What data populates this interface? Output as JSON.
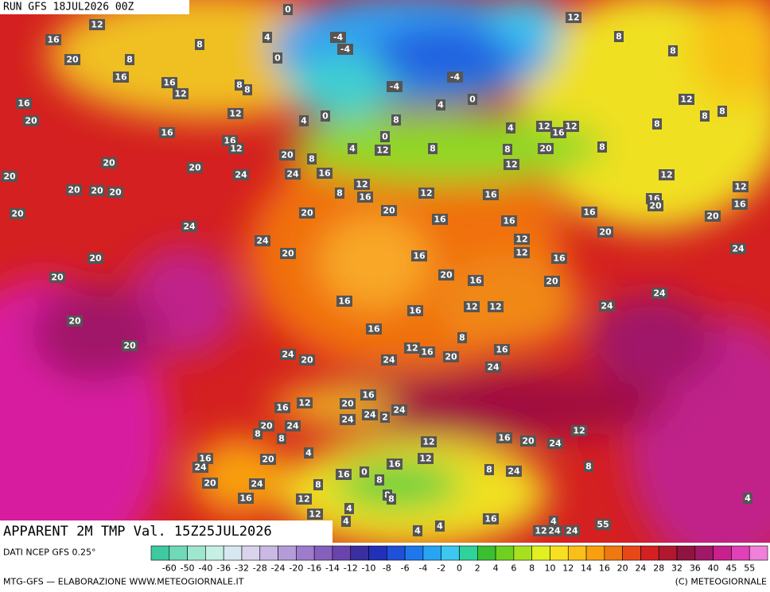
{
  "header": {
    "run": "RUN GFS 18JUL2026 00Z"
  },
  "footer": {
    "title": "APPARENT 2M TMP Val. 15Z25JUL2026",
    "source": "DATI NCEP GFS 0.25°",
    "credit": "MTG-GFS — ELABORAZIONE WWW.METEOGIORNALE.IT",
    "copyright": "(C) METEOGIORNALE"
  },
  "colorbar": {
    "labels": [
      -60,
      -50,
      -40,
      -36,
      -32,
      -28,
      -24,
      -20,
      -16,
      -14,
      -12,
      -10,
      -8,
      -6,
      -4,
      -2,
      0,
      2,
      4,
      6,
      8,
      10,
      12,
      14,
      16,
      20,
      24,
      28,
      32,
      36,
      40,
      45,
      55
    ],
    "colors": [
      "#3ec9a0",
      "#6fd9b8",
      "#9fe6cf",
      "#c5f0e3",
      "#d8e8f0",
      "#d9d4ec",
      "#c9b9e4",
      "#b59cd8",
      "#9d7ccb",
      "#8660bd",
      "#6a44ae",
      "#3a2ea0",
      "#2030b8",
      "#2050d8",
      "#1e78ec",
      "#28a4f4",
      "#3cc8f0",
      "#2ed29a",
      "#38c030",
      "#70d020",
      "#a8e020",
      "#e0f020",
      "#f8e020",
      "#f8c018",
      "#f8a010",
      "#f07810",
      "#e84818",
      "#d42020",
      "#b01830",
      "#901440",
      "#a01868",
      "#c8208c",
      "#e040b8",
      "#f080d8"
    ]
  },
  "map_labels": [
    12,
    0,
    16,
    8,
    4,
    -4,
    -4,
    0,
    20,
    8,
    16,
    16,
    12,
    8,
    8,
    -4,
    -4,
    0,
    4,
    0,
    4,
    12,
    16,
    20,
    16,
    16,
    12,
    20,
    8,
    4,
    12,
    8,
    8,
    0,
    8,
    12,
    20,
    8,
    12,
    16,
    12,
    4,
    12,
    8,
    8,
    12,
    8,
    8,
    8,
    12,
    12,
    16,
    20,
    16,
    20,
    24,
    24,
    20,
    20,
    24,
    24,
    16,
    20,
    20,
    20,
    20,
    20,
    24,
    20,
    8,
    12,
    16,
    20,
    12,
    16,
    16,
    16,
    16,
    20,
    12,
    12,
    16,
    20,
    24,
    20,
    24,
    20,
    16,
    20,
    16,
    20,
    16,
    16,
    12,
    12,
    20,
    16,
    20,
    24,
    20,
    24,
    12,
    16,
    20,
    8,
    16,
    24,
    16,
    20,
    24,
    2,
    24,
    12,
    16,
    20,
    24,
    8,
    8,
    24,
    12,
    16,
    20,
    24,
    12,
    12,
    20,
    16,
    24,
    20,
    24,
    16,
    12,
    12,
    16,
    0,
    8,
    16,
    8,
    24,
    8,
    8,
    4,
    4,
    8,
    8,
    4,
    4,
    16,
    4,
    12,
    24,
    24,
    55,
    4,
    4
  ]
}
